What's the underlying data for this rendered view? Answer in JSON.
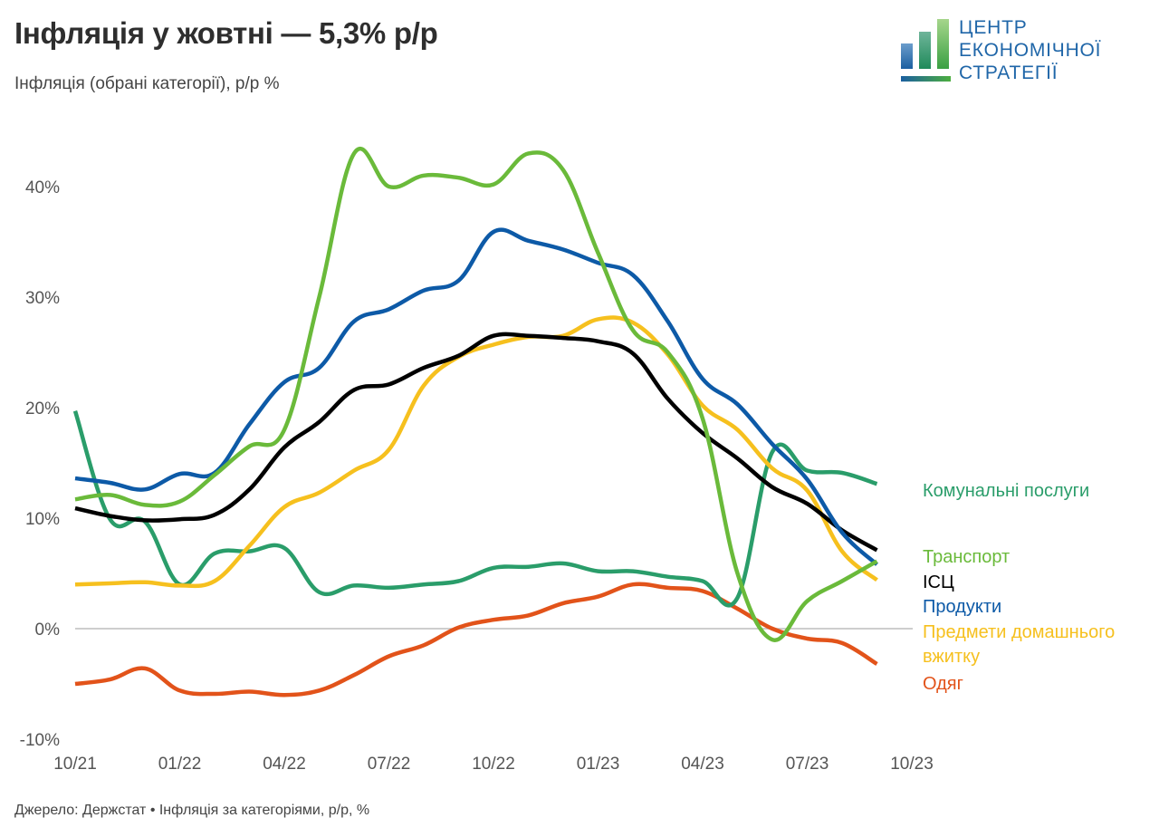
{
  "header": {
    "title": "Інфляція у жовтні — 5,3% р/р",
    "subtitle": "Інфляція (обрані категорії), р/р %"
  },
  "logo": {
    "line1": "ЦЕНТР",
    "line2": "ЕКОНОМІЧНОЇ",
    "line3": "СТРАТЕГІЇ",
    "icon": "bar-chart-logo-icon"
  },
  "footer": {
    "source": "Джерело: Держстат • Інфляція за категоріями, р/р, %"
  },
  "chart_data": {
    "type": "line",
    "title": "Інфляція у жовтні — 5,3% р/р",
    "subtitle": "Інфляція (обрані категорії), р/р %",
    "xlabel": "",
    "ylabel": "",
    "ylim": [
      -10,
      40
    ],
    "yticks": [
      -10,
      0,
      10,
      20,
      30,
      40
    ],
    "ytick_labels": [
      "-10%",
      "0%",
      "10%",
      "20%",
      "30%",
      "40%"
    ],
    "xticks": [
      "10/21",
      "01/22",
      "04/22",
      "07/22",
      "10/22",
      "01/23",
      "04/23",
      "07/23",
      "10/23"
    ],
    "xtick_month_index": [
      0,
      3,
      6,
      9,
      12,
      15,
      18,
      21,
      24
    ],
    "x": [
      "10/21",
      "11/21",
      "12/21",
      "01/22",
      "02/22",
      "03/22",
      "04/22",
      "05/22",
      "06/22",
      "07/22",
      "08/22",
      "09/22",
      "10/22",
      "11/22",
      "12/22",
      "01/23",
      "02/23",
      "03/23",
      "04/23",
      "05/23",
      "06/23",
      "07/23",
      "08/23",
      "09/23"
    ],
    "grid": "zero-line only",
    "legend": "right (direct labels)",
    "series": [
      {
        "name": "Комунальні послуги",
        "color": "#2a9d6a",
        "values": [
          19.7,
          9.9,
          9.7,
          4.0,
          6.8,
          7.0,
          7.3,
          3.3,
          3.9,
          3.7,
          4.0,
          4.3,
          5.5,
          5.6,
          5.9,
          5.2,
          5.2,
          4.7,
          4.3,
          2.8,
          16.0,
          14.3,
          14.1,
          13.1
        ]
      },
      {
        "name": "Транспорт",
        "color": "#6aba3a",
        "values": [
          11.7,
          12.1,
          11.2,
          11.5,
          13.9,
          16.5,
          18.0,
          30.0,
          43.0,
          40.0,
          41.0,
          40.8,
          40.2,
          43.0,
          41.5,
          34.0,
          27.0,
          25.0,
          19.0,
          5.0,
          -1.0,
          2.5,
          4.3,
          6.1
        ]
      },
      {
        "name": "ІСЦ",
        "color": "#000000",
        "values": [
          10.9,
          10.2,
          9.8,
          9.9,
          10.3,
          12.6,
          16.4,
          18.7,
          21.6,
          22.1,
          23.6,
          24.7,
          26.5,
          26.5,
          26.3,
          26.0,
          24.9,
          20.8,
          17.7,
          15.4,
          12.8,
          11.3,
          8.9,
          7.1
        ]
      },
      {
        "name": "Продукти",
        "color": "#0d5aa7",
        "values": [
          13.6,
          13.2,
          12.6,
          14.0,
          14.1,
          18.5,
          22.3,
          23.6,
          27.8,
          28.9,
          30.6,
          31.5,
          35.9,
          35.1,
          34.3,
          33.1,
          32.0,
          27.8,
          22.6,
          20.3,
          16.7,
          13.5,
          8.7,
          5.8
        ]
      },
      {
        "name": "Предмети домашнього вжитку",
        "color": "#f6c01e",
        "values": [
          4.0,
          4.1,
          4.2,
          3.9,
          4.3,
          7.5,
          11.0,
          12.3,
          14.3,
          16.2,
          22.0,
          24.6,
          25.7,
          26.4,
          26.5,
          28.0,
          27.7,
          24.8,
          20.2,
          18.0,
          14.5,
          12.5,
          7.0,
          4.4
        ]
      },
      {
        "name": "Одяг",
        "color": "#e2531a",
        "values": [
          -5.0,
          -4.6,
          -3.6,
          -5.6,
          -5.9,
          -5.7,
          -6.0,
          -5.6,
          -4.2,
          -2.5,
          -1.5,
          0.1,
          0.8,
          1.2,
          2.3,
          2.9,
          4.0,
          3.7,
          3.4,
          1.8,
          0.0,
          -0.9,
          -1.3,
          -3.2
        ]
      }
    ],
    "labels": [
      {
        "series": "Комунальні послуги",
        "lines": [
          "Комунальні послуги"
        ]
      },
      {
        "series": "Транспорт",
        "lines": [
          "Транспорт"
        ]
      },
      {
        "series": "ІСЦ",
        "lines": [
          "ІСЦ"
        ]
      },
      {
        "series": "Продукти",
        "lines": [
          "Продукти"
        ]
      },
      {
        "series": "Предмети домашнього вжитку",
        "lines": [
          "Предмети домашнього",
          "вжитку"
        ]
      },
      {
        "series": "Одяг",
        "lines": [
          "Одяг"
        ]
      }
    ]
  }
}
